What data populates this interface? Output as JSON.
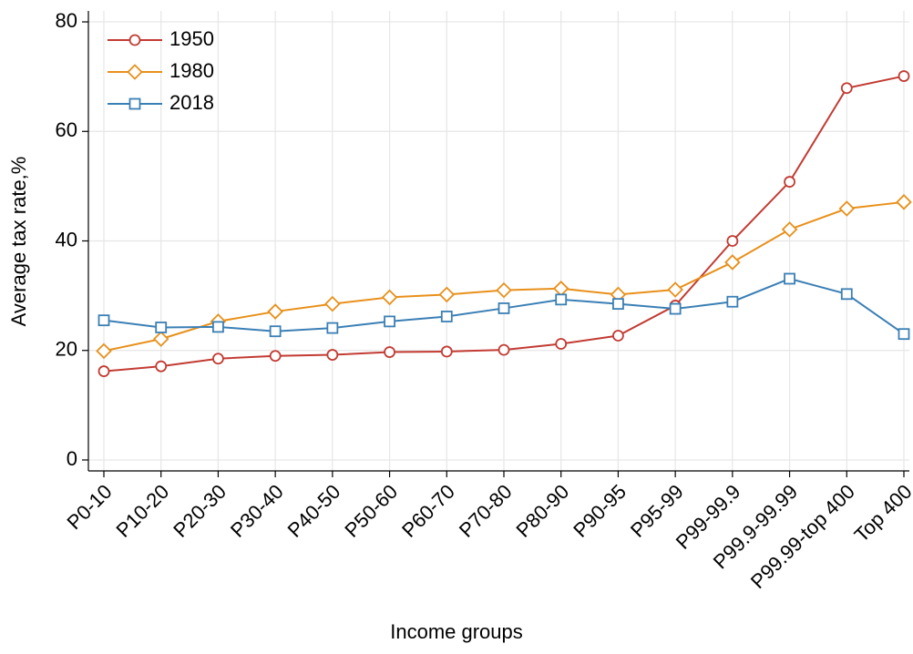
{
  "chart_data": {
    "type": "line",
    "x_label": "Income groups",
    "y_label": "Average tax rate,%",
    "categories": [
      "P0-10",
      "P10-20",
      "P20-30",
      "P30-40",
      "P40-50",
      "P50-60",
      "P60-70",
      "P70-80",
      "P80-90",
      "P90-95",
      "P95-99",
      "P99-99.9",
      "P99.9-99.99",
      "P99.99-top 400",
      "Top 400"
    ],
    "series": [
      {
        "name": "1950",
        "color": "#c23b33",
        "marker": "circle",
        "values": [
          16.2,
          17.1,
          18.5,
          19.0,
          19.2,
          19.7,
          19.8,
          20.1,
          21.2,
          22.7,
          28.2,
          40.0,
          50.8,
          67.9,
          70.1
        ]
      },
      {
        "name": "1980",
        "color": "#e8901a",
        "marker": "diamond",
        "values": [
          19.9,
          22.1,
          25.3,
          27.1,
          28.5,
          29.7,
          30.2,
          31.0,
          31.3,
          30.2,
          31.1,
          36.1,
          42.1,
          45.9,
          47.1
        ]
      },
      {
        "name": "2018",
        "color": "#3a7fb5",
        "marker": "square",
        "values": [
          25.5,
          24.2,
          24.3,
          23.5,
          24.1,
          25.3,
          26.2,
          27.7,
          29.3,
          28.5,
          27.6,
          28.9,
          33.1,
          30.3,
          23.0
        ]
      }
    ],
    "ylim": [
      -2,
      82
    ],
    "yticks": [
      0,
      20,
      40,
      60,
      80
    ],
    "grid": true,
    "legend": "top-left"
  }
}
